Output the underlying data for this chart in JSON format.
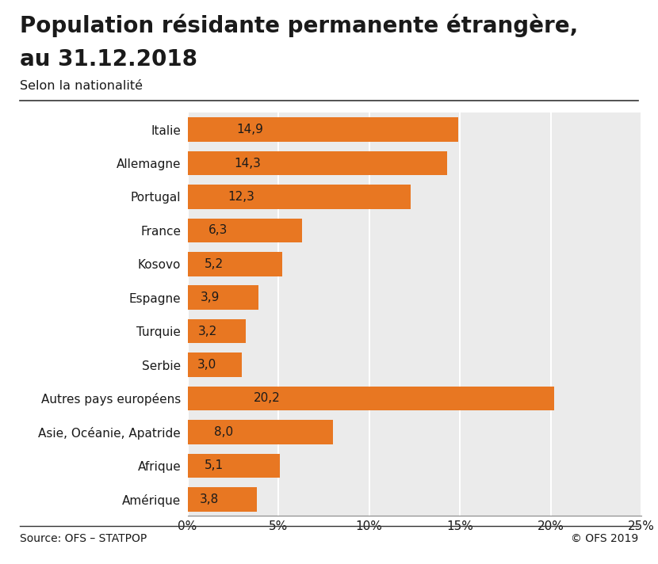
{
  "title_line1": "Population résidante permanente étrangère,",
  "title_line2": "au 31.12.2018",
  "subtitle": "Selon la nationalité",
  "source_left": "Source: OFS – STATPOP",
  "source_right": "© OFS 2019",
  "categories": [
    "Italie",
    "Allemagne",
    "Portugal",
    "France",
    "Kosovo",
    "Espagne",
    "Turquie",
    "Serbie",
    "Autres pays européens",
    "Asie, Océanie, Apatride",
    "Afrique",
    "Amérique"
  ],
  "values": [
    14.9,
    14.3,
    12.3,
    6.3,
    5.2,
    3.9,
    3.2,
    3.0,
    20.2,
    8.0,
    5.1,
    3.8
  ],
  "bar_color": "#E87722",
  "background_color": "#EBEBEB",
  "outer_background": "#FFFFFF",
  "xlim": [
    0,
    25
  ],
  "xticks": [
    0,
    5,
    10,
    15,
    20,
    25
  ],
  "xtick_labels": [
    "0%",
    "5%",
    "10%",
    "15%",
    "20%",
    "25%"
  ],
  "title_fontsize": 20,
  "subtitle_fontsize": 11.5,
  "tick_fontsize": 11,
  "label_fontsize": 11,
  "bar_label_fontsize": 11,
  "source_fontsize": 10,
  "grid_color": "#FFFFFF",
  "bar_height": 0.72,
  "separator_color": "#333333",
  "text_color": "#1a1a1a",
  "bar_label_color": "#1a1a1a"
}
